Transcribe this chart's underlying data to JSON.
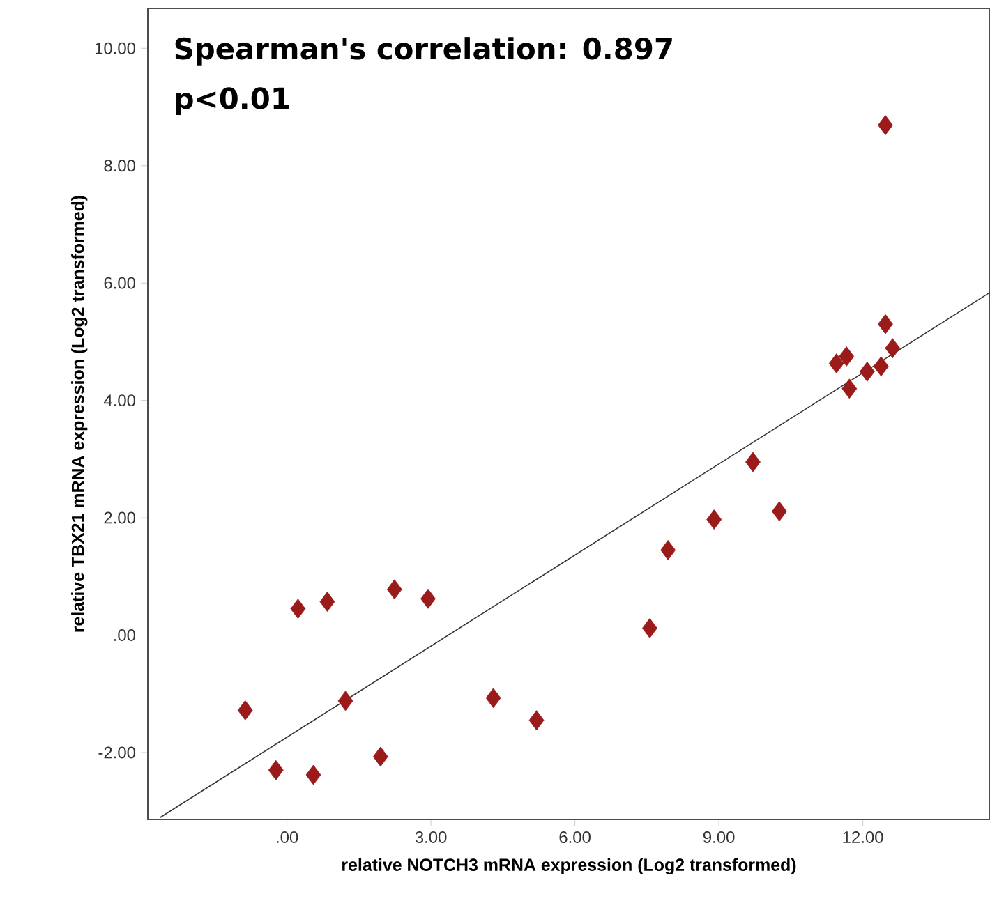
{
  "chart_data": {
    "type": "scatter",
    "xlabel": "relative NOTCH3 mRNA expression (Log2 transformed)",
    "ylabel": "relative TBX21 mRNA expression (Log2 transformed)",
    "annotations": [
      "Spearman's correlation: 0.897",
      "p<0.01"
    ],
    "xlim": [
      -2.9,
      14.65
    ],
    "ylim": [
      -3.14,
      10.68
    ],
    "xticks": [
      {
        "value": 0,
        "label": ".00"
      },
      {
        "value": 3,
        "label": "3.00"
      },
      {
        "value": 6,
        "label": "6.00"
      },
      {
        "value": 9,
        "label": "9.00"
      },
      {
        "value": 12,
        "label": "12.00"
      }
    ],
    "yticks": [
      {
        "value": -2,
        "label": "-2.00"
      },
      {
        "value": 0,
        "label": ".00"
      },
      {
        "value": 2,
        "label": "2.00"
      },
      {
        "value": 4,
        "label": "4.00"
      },
      {
        "value": 6,
        "label": "6.00"
      },
      {
        "value": 8,
        "label": "8.00"
      },
      {
        "value": 10,
        "label": "10.00"
      }
    ],
    "grid": false,
    "series": [
      {
        "marker": "diamond",
        "color": "#9b1b1b",
        "x": [
          -0.87,
          -0.23,
          0.23,
          0.84,
          0.55,
          1.22,
          1.95,
          2.24,
          2.94,
          4.3,
          5.2,
          7.56,
          7.94,
          8.9,
          9.71,
          10.26,
          11.72,
          11.45,
          11.66,
          12.09,
          12.38,
          12.47,
          12.62,
          12.47
        ],
        "values": [
          -1.28,
          -2.3,
          0.45,
          0.57,
          -2.38,
          -1.12,
          -2.07,
          0.78,
          0.62,
          -1.07,
          -1.45,
          0.12,
          1.45,
          1.97,
          2.95,
          2.11,
          4.2,
          4.63,
          4.75,
          4.49,
          4.58,
          5.3,
          4.89,
          8.69
        ]
      },
      {
        "type": "line",
        "marker": "none",
        "color": "#333333",
        "x": [
          -2.65,
          14.65
        ],
        "values": [
          -3.11,
          5.84
        ]
      }
    ]
  }
}
